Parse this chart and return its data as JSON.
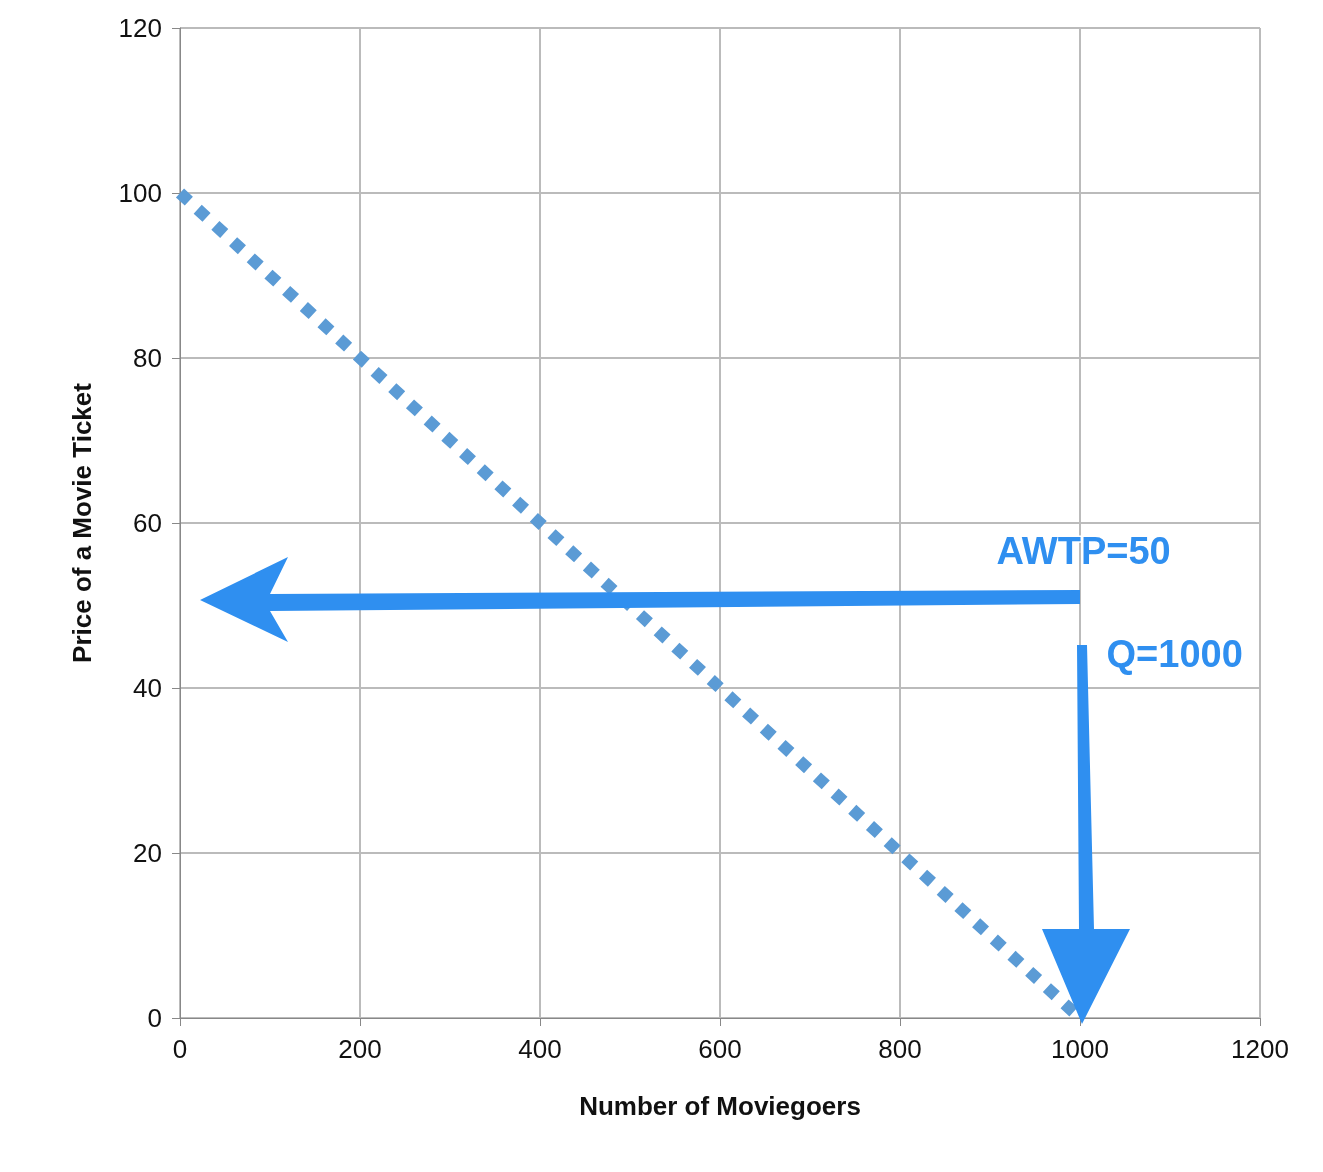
{
  "chart_data": {
    "type": "line",
    "xlabel": "Number of Moviegoers",
    "ylabel": "Price of a Movie Ticket",
    "x": [
      0,
      1000
    ],
    "series": [
      {
        "color": "#5b9bd5",
        "values": [
          100,
          0
        ],
        "line_style": "dotted"
      }
    ],
    "xlim": [
      0,
      1200
    ],
    "xticks": [
      0,
      200,
      400,
      600,
      800,
      1000,
      1200
    ],
    "ylim": [
      0,
      120
    ],
    "yticks": [
      0,
      20,
      40,
      60,
      80,
      100,
      120
    ],
    "grid": true,
    "marker": "none",
    "annotations": [
      "AWTP=50",
      "Q=1000"
    ]
  }
}
